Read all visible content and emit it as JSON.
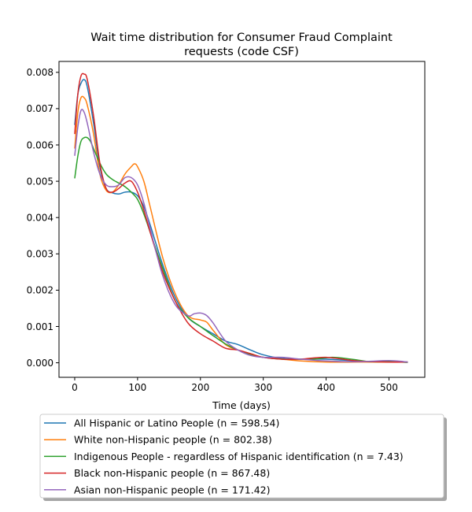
{
  "chart_data": {
    "type": "line",
    "title_lines": [
      "Wait time distribution  for Consumer Fraud Complaint",
      "requests (code CSF)"
    ],
    "xlabel": "Time (days)",
    "ylabel": "",
    "xlim": [
      -25,
      557
    ],
    "ylim": [
      -0.0004,
      0.0083
    ],
    "xticks": [
      0,
      100,
      200,
      300,
      400,
      500
    ],
    "xtick_labels": [
      "0",
      "100",
      "200",
      "300",
      "400",
      "500"
    ],
    "yticks": [
      0.0,
      0.001,
      0.002,
      0.003,
      0.004,
      0.005,
      0.006,
      0.007,
      0.008
    ],
    "ytick_labels": [
      "0.000",
      "0.001",
      "0.002",
      "0.003",
      "0.004",
      "0.005",
      "0.006",
      "0.007",
      "0.008"
    ],
    "grid": false,
    "legend_position": "below plot",
    "series": [
      {
        "name": "All Hispanic or Latino People (n = 598.54)",
        "color": "#1f77b4",
        "x": [
          0,
          5,
          10,
          15,
          20,
          30,
          40,
          50,
          60,
          70,
          80,
          90,
          100,
          110,
          120,
          140,
          160,
          180,
          200,
          220,
          240,
          260,
          280,
          300,
          330,
          360,
          400,
          450,
          500,
          530
        ],
        "y": [
          0.00655,
          0.0074,
          0.0077,
          0.0078,
          0.0076,
          0.0066,
          0.0054,
          0.0048,
          0.00468,
          0.00465,
          0.0047,
          0.0047,
          0.0046,
          0.0043,
          0.0038,
          0.0027,
          0.0018,
          0.00125,
          0.001,
          0.0008,
          0.0006,
          0.0005,
          0.00035,
          0.00022,
          0.00012,
          0.0001,
          0.0001,
          5e-05,
          2e-05,
          2e-05
        ]
      },
      {
        "name": "White non-Hispanic people (n = 802.38)",
        "color": "#ff7f0e",
        "x": [
          0,
          5,
          10,
          15,
          20,
          30,
          40,
          50,
          60,
          70,
          80,
          90,
          95,
          100,
          110,
          120,
          140,
          160,
          180,
          200,
          210,
          220,
          240,
          260,
          280,
          300,
          330,
          360,
          400,
          450,
          500,
          530
        ],
        "y": [
          0.0059,
          0.0069,
          0.0073,
          0.0073,
          0.0071,
          0.0063,
          0.0052,
          0.00475,
          0.0047,
          0.0049,
          0.0052,
          0.0054,
          0.00548,
          0.0054,
          0.005,
          0.0043,
          0.0029,
          0.0019,
          0.0013,
          0.00118,
          0.00112,
          0.0009,
          0.0005,
          0.00035,
          0.00025,
          0.00015,
          0.0001,
          5e-05,
          2e-05,
          2e-05,
          2e-05,
          2e-05
        ]
      },
      {
        "name": "Indigenous People - regardless of Hispanic identification (n = 7.43)",
        "color": "#2ca02c",
        "x": [
          0,
          5,
          10,
          15,
          20,
          25,
          30,
          40,
          50,
          60,
          70,
          80,
          90,
          100,
          110,
          120,
          140,
          160,
          180,
          200,
          220,
          240,
          260,
          280,
          300,
          330,
          360,
          380,
          410,
          440,
          470,
          500,
          530
        ],
        "y": [
          0.00508,
          0.0057,
          0.0061,
          0.0062,
          0.0062,
          0.0061,
          0.0059,
          0.0055,
          0.0052,
          0.00505,
          0.00495,
          0.00485,
          0.0047,
          0.0045,
          0.0041,
          0.0036,
          0.0026,
          0.0017,
          0.00125,
          0.001,
          0.00075,
          0.00052,
          0.00035,
          0.00022,
          0.00015,
          0.0001,
          0.0001,
          0.0001,
          0.00015,
          0.0001,
          3e-05,
          3e-05,
          1e-05
        ]
      },
      {
        "name": "Black non-Hispanic people (n = 867.48)",
        "color": "#d62728",
        "x": [
          0,
          5,
          10,
          15,
          20,
          30,
          40,
          50,
          60,
          70,
          80,
          90,
          100,
          110,
          120,
          140,
          160,
          180,
          200,
          220,
          240,
          260,
          280,
          300,
          330,
          360,
          400,
          450,
          500,
          530
        ],
        "y": [
          0.0063,
          0.0074,
          0.0079,
          0.00795,
          0.0078,
          0.0068,
          0.0055,
          0.0048,
          0.0047,
          0.0048,
          0.00495,
          0.005,
          0.0047,
          0.0042,
          0.0036,
          0.0025,
          0.0017,
          0.0011,
          0.0008,
          0.0006,
          0.0004,
          0.00035,
          0.00025,
          0.00015,
          0.0001,
          0.0001,
          0.00015,
          5e-05,
          2e-05,
          2e-05
        ]
      },
      {
        "name": "Asian non-Hispanic people (n = 171.42)",
        "color": "#9467bd",
        "x": [
          0,
          5,
          10,
          15,
          20,
          30,
          40,
          50,
          60,
          70,
          80,
          90,
          100,
          110,
          120,
          140,
          160,
          180,
          190,
          200,
          210,
          220,
          240,
          260,
          280,
          300,
          330,
          360,
          400,
          450,
          500,
          530
        ],
        "y": [
          0.0057,
          0.0065,
          0.00695,
          0.0069,
          0.0066,
          0.0058,
          0.0052,
          0.0049,
          0.00485,
          0.0049,
          0.0051,
          0.0051,
          0.0049,
          0.0044,
          0.0037,
          0.0024,
          0.0016,
          0.0013,
          0.00135,
          0.00137,
          0.0013,
          0.0011,
          0.0006,
          0.00035,
          0.0002,
          0.00015,
          0.00015,
          0.0001,
          5e-05,
          3e-05,
          6e-05,
          2e-05
        ]
      }
    ]
  }
}
